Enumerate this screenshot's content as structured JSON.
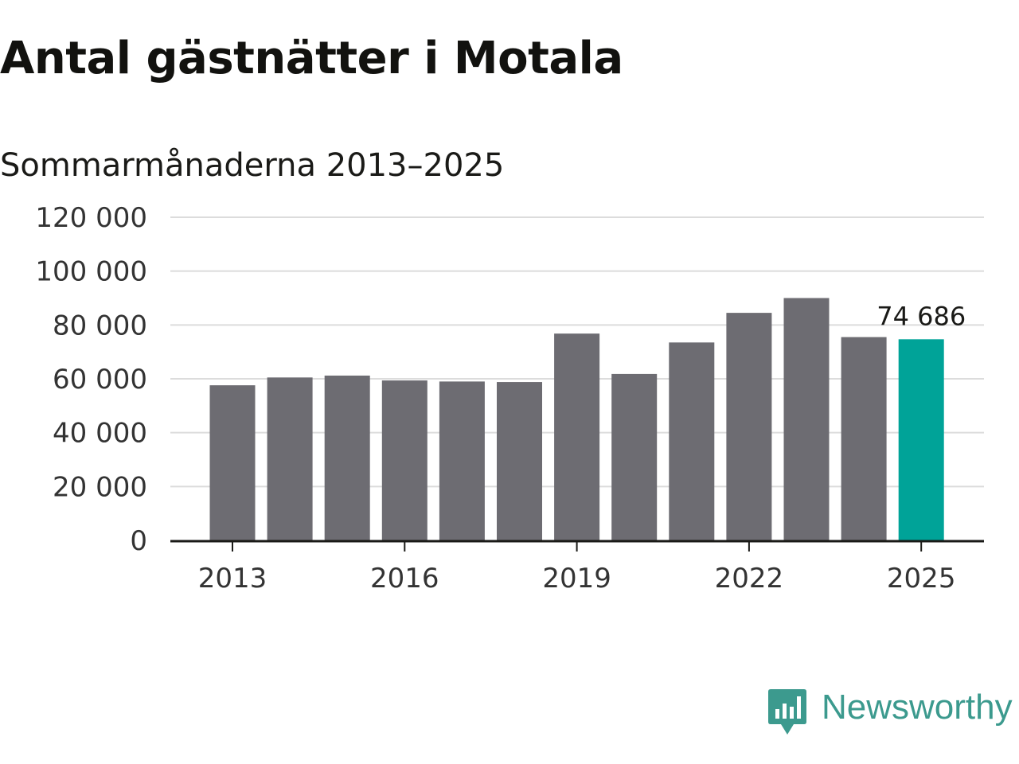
{
  "header": {
    "title": "Antal gästnätter i Motala",
    "subtitle": "Sommarmånaderna 2013–2025"
  },
  "brand": {
    "name": "Newsworthy",
    "icon": "newsworthy-logo-icon",
    "color": "#3c9a8e"
  },
  "colors": {
    "bar": "#6d6c72",
    "highlight": "#00a398",
    "grid": "#dcdcdc",
    "axis": "#1a1a17",
    "text": "#333333"
  },
  "chart_data": {
    "type": "bar",
    "title": "Antal gästnätter i Motala",
    "subtitle": "Sommarmånaderna 2013–2025",
    "xlabel": "",
    "ylabel": "",
    "x": [
      2013,
      2014,
      2015,
      2016,
      2017,
      2018,
      2019,
      2020,
      2021,
      2022,
      2023,
      2024,
      2025
    ],
    "values": [
      57600,
      60500,
      61200,
      59400,
      59000,
      58800,
      76800,
      61800,
      73500,
      84500,
      90000,
      75500,
      74686
    ],
    "ylim": [
      0,
      120000
    ],
    "yticks": [
      0,
      20000,
      40000,
      60000,
      80000,
      100000,
      120000
    ],
    "ytick_labels": [
      "0",
      "20 000",
      "40 000",
      "60 000",
      "80 000",
      "100 000",
      "120 000"
    ],
    "xticks": [
      2013,
      2016,
      2019,
      2022,
      2025
    ],
    "xtick_labels": [
      "2013",
      "2016",
      "2019",
      "2022",
      "2025"
    ],
    "grid": "horizontal",
    "highlight": {
      "year": 2025,
      "label": "74 686"
    }
  }
}
